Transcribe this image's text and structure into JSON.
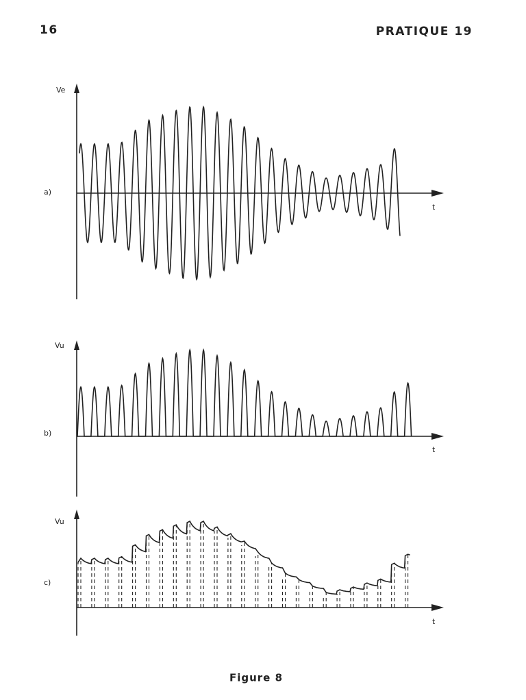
{
  "header": {
    "page": "16",
    "title": "PRATIQUE 19"
  },
  "panels": [
    {
      "label": "a)",
      "y_axis": "Ve",
      "x_axis": "t"
    },
    {
      "label": "b)",
      "y_axis": "Vu",
      "x_axis": "t"
    },
    {
      "label": "c)",
      "y_axis": "Vu",
      "x_axis": "t"
    }
  ],
  "caption": "Figure 8"
}
